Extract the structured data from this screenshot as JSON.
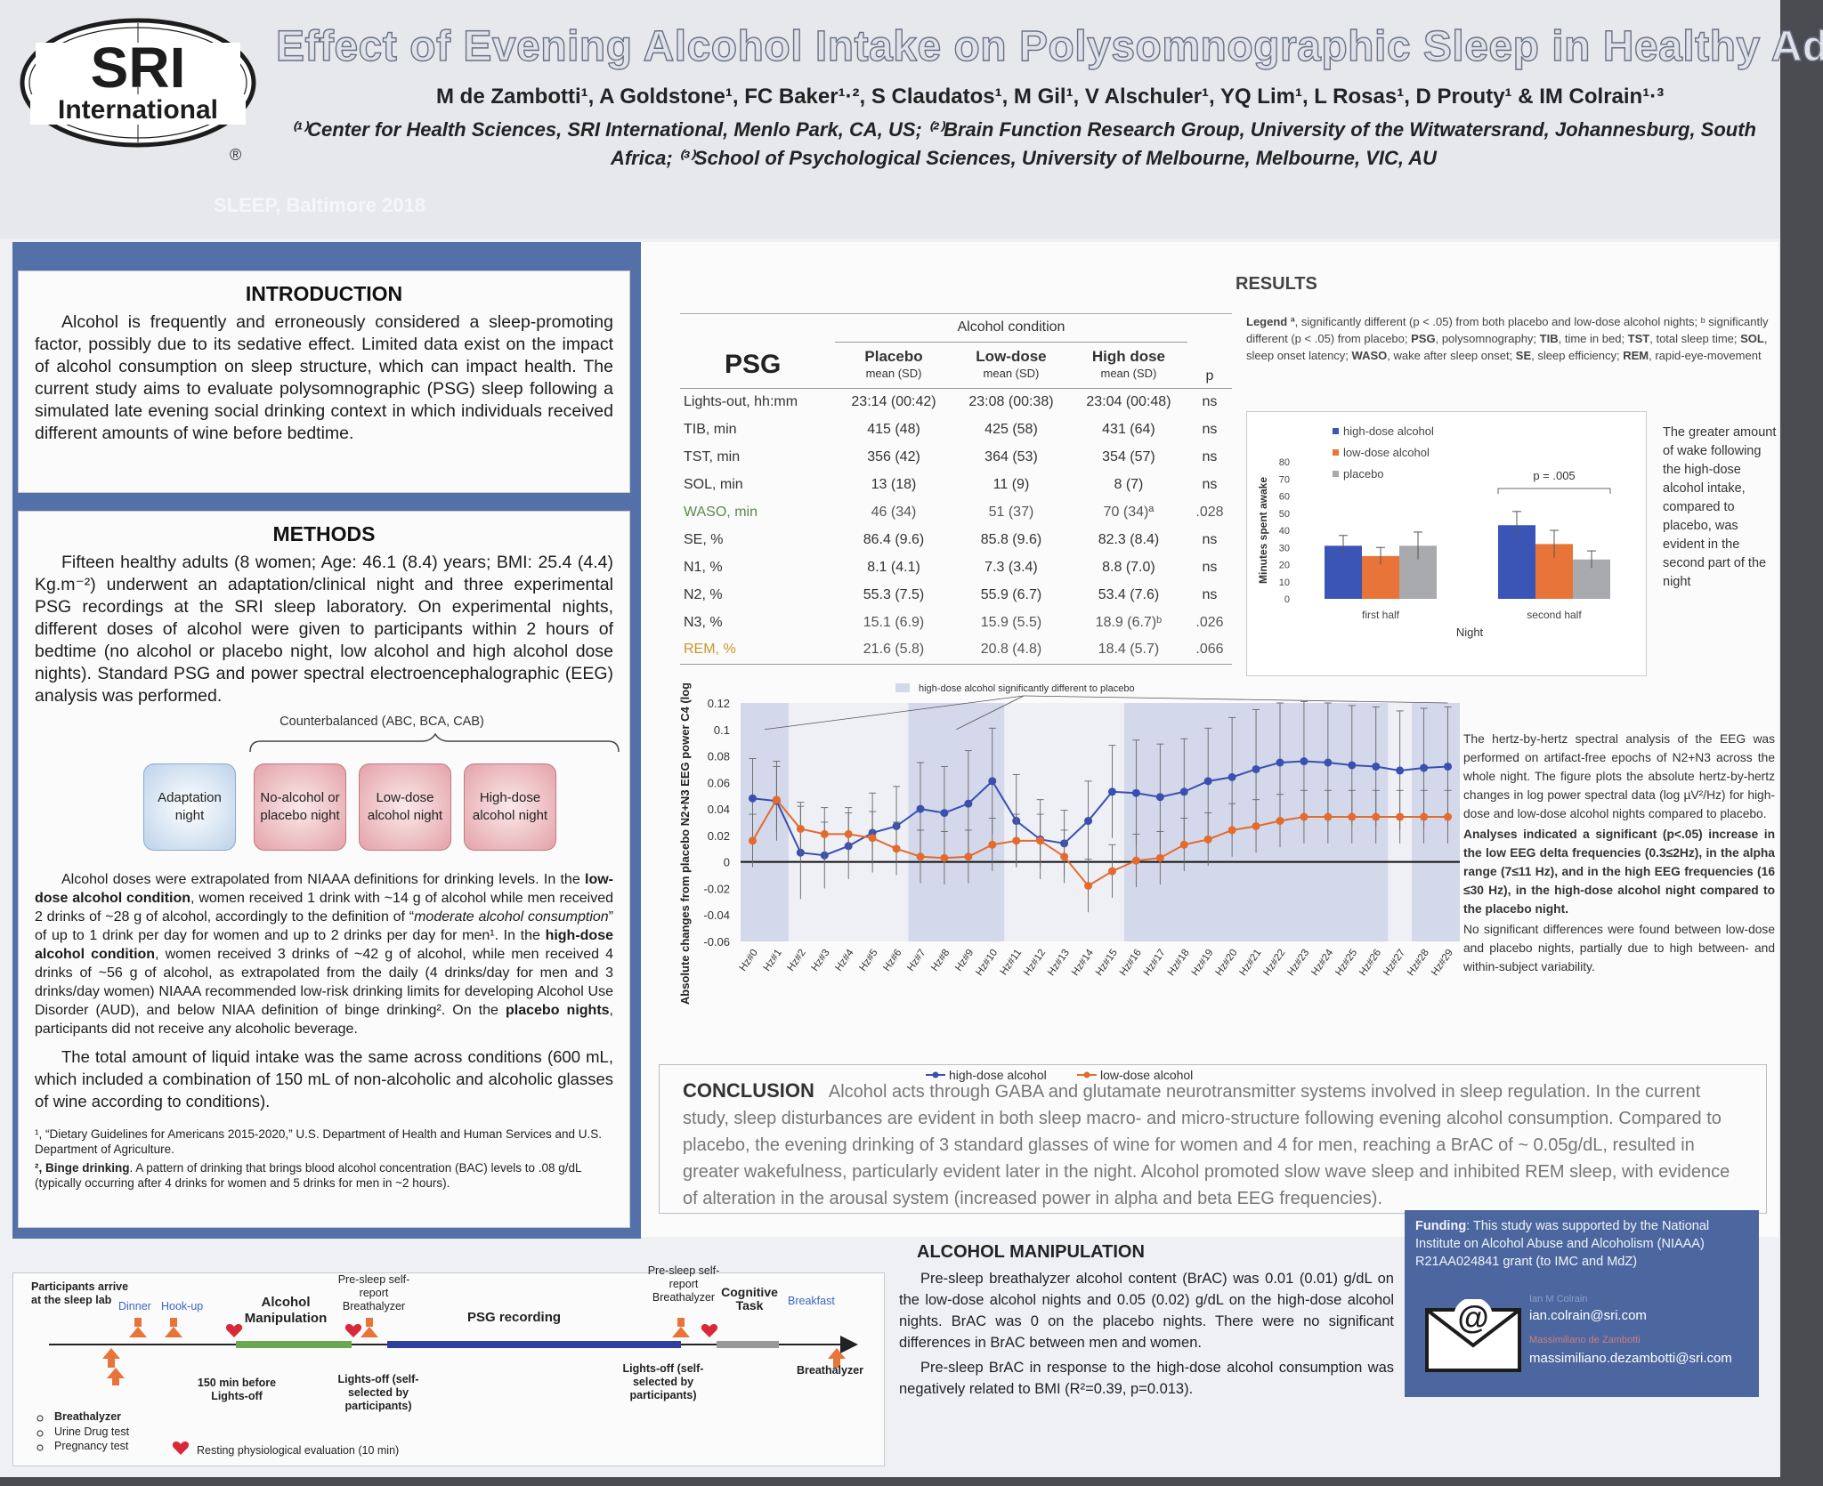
{
  "header": {
    "logo_top": "SRI",
    "logo_bottom": "International",
    "registered": "®",
    "title": "Effect of Evening Alcohol Intake on Polysomnographic Sleep in Healthy Adults",
    "authors": "M de Zambotti¹, A Goldstone¹, FC Baker¹·², S Claudatos¹, M Gil¹, V Alschuler¹, YQ Lim¹, L Rosas¹, D Prouty¹ & IM Colrain¹·³",
    "affiliations": "⁽¹⁾Center for Health Sciences, SRI International, Menlo Park, CA, US; ⁽²⁾Brain Function Research Group, University of the Witwatersrand, Johannesburg, South Africa; ⁽³⁾School of Psychological Sciences, University of Melbourne, Melbourne, VIC, AU",
    "conference": "SLEEP, Baltimore 2018"
  },
  "introduction": {
    "heading": "INTRODUCTION",
    "text": "Alcohol is frequently and erroneously considered a sleep-promoting factor, possibly due to its sedative effect. Limited data exist on the impact of alcohol consumption on sleep structure, which can impact health. The current study aims to evaluate polysomnographic (PSG) sleep following a simulated late evening social drinking context in which individuals received different amounts of wine before bedtime."
  },
  "methods": {
    "heading": "METHODS",
    "text": "Fifteen healthy adults (8 women; Age: 46.1 (8.4) years; BMI: 25.4 (4.4) Kg.m⁻²) underwent an adaptation/clinical night and three experimental PSG recordings at the SRI sleep laboratory. On experimental nights, different doses of alcohol were given to participants within 2 hours of bedtime (no alcohol or placebo night, low alcohol and high alcohol dose nights). Standard PSG and power spectral electroencephalographic (EEG) analysis was performed.",
    "counterbalanced": "Counterbalanced (ABC, BCA, CAB)",
    "nights": [
      "Adaptation night",
      "No-alcohol or placebo night",
      "Low-dose alcohol night",
      "High-dose alcohol night"
    ],
    "doses_p1": "Alcohol doses were extrapolated from NIAAA definitions for drinking levels. In the ",
    "doses_b1": "low-dose alcohol condition",
    "doses_p2": ", women received 1 drink with ~14 g of alcohol while men received 2 drinks of ~28 g of alcohol, accordingly to the definition of “",
    "doses_i1": "moderate alcohol consumption",
    "doses_p3": "” of up to 1 drink per day for women and up to 2 drinks per day for men¹. In the ",
    "doses_b2": "high-dose alcohol condition",
    "doses_p4": ", women received 3 drinks of ~42 g of alcohol, while men received 4 drinks of ~56 g of alcohol, as extrapolated from the daily (4 drinks/day for men and 3 drinks/day women) NIAAA recommended low-risk drinking limits for developing Alcohol Use Disorder (AUD), and below NIAA definition of binge drinking². On the ",
    "doses_b3": "placebo nights",
    "doses_p5": ", participants did not receive any alcoholic beverage.",
    "total": "The total amount of liquid intake was the same across conditions (600 mL, which included a combination of 150 mL of non-alcoholic and alcoholic glasses of wine according to conditions).",
    "fn1": "¹, “Dietary Guidelines for Americans 2015-2020,” U.S. Department of Health and Human Services and U.S. Department of Agriculture.",
    "fn2_b": "², Binge drinking",
    "fn2": ". A pattern of drinking that brings blood alcohol concentration (BAC) levels to .08 g/dL (typically occurring after 4 drinks for women and 5 drinks for men in ~2 hours)."
  },
  "results": {
    "heading": "RESULTS",
    "table": {
      "psg_label": "PSG",
      "group_header": "Alcohol condition",
      "columns": [
        {
          "name": "Placebo",
          "sub": "mean (SD)"
        },
        {
          "name": "Low-dose",
          "sub": "mean (SD)"
        },
        {
          "name": "High dose",
          "sub": "mean (SD)"
        }
      ],
      "p_header": "p",
      "rows": [
        {
          "label": "Lights-out, hh:mm",
          "placebo": "23:14 (00:42)",
          "low": "23:08 (00:38)",
          "high": "23:04 (00:48)",
          "p": "ns"
        },
        {
          "label": "TIB, min",
          "placebo": "415 (48)",
          "low": "425 (58)",
          "high": "431 (64)",
          "p": "ns"
        },
        {
          "label": "TST, min",
          "placebo": "356 (42)",
          "low": "364 (53)",
          "high": "354 (57)",
          "p": "ns"
        },
        {
          "label": "SOL, min",
          "placebo": "13 (18)",
          "low": "11 (9)",
          "high": "8 (7)",
          "p": "ns"
        },
        {
          "label": "WASO, min",
          "placebo": "46 (34)",
          "low": "51 (37)",
          "high": "70 (34)ª",
          "p": ".028"
        },
        {
          "label": "SE, %",
          "placebo": "86.4 (9.6)",
          "low": "85.8 (9.6)",
          "high": "82.3 (8.4)",
          "p": "ns"
        },
        {
          "label": "N1, %",
          "placebo": "8.1 (4.1)",
          "low": "7.3 (3.4)",
          "high": "8.8 (7.0)",
          "p": "ns"
        },
        {
          "label": "N2, %",
          "placebo": "55.3 (7.5)",
          "low": "55.9 (6.7)",
          "high": "53.4 (7.6)",
          "p": "ns"
        },
        {
          "label": "N3, %",
          "placebo": "15.1 (6.9)",
          "low": "15.9 (5.5)",
          "high": "18.9 (6.7)ᵇ",
          "p": ".026"
        },
        {
          "label": "REM, %",
          "placebo": "21.6 (5.8)",
          "low": "20.8 (4.8)",
          "high": "18.4 (5.7)",
          "p": ".066"
        }
      ],
      "colors": {
        "waso": "#5a8a4c",
        "n3": "#5a8a4c",
        "rem": "#c8952a"
      }
    },
    "legend_b1": "Legend ª",
    "legend_t1": ", significantly different (p < .05) from both placebo and low-dose alcohol nights; ᵇ significantly different (p < .05) from placebo; ",
    "legend_b2": "PSG",
    "legend_t2": ", polysomnography; ",
    "legend_b3": "TIB",
    "legend_t3": ", time in bed; ",
    "legend_b4": "TST",
    "legend_t4": ", total sleep time; ",
    "legend_b5": "SOL",
    "legend_t5": ", sleep onset latency; ",
    "legend_b6": "WASO",
    "legend_t6": ", wake after sleep onset; ",
    "legend_b7": "SE",
    "legend_t7": ", sleep efficiency; ",
    "legend_b8": "REM",
    "legend_t8": ", rapid-eye-movement",
    "wake_note": "The greater amount of wake following the high-dose alcohol intake, compared to placebo, was evident in the second part of the night",
    "spectral_p1": "The hertz-by-hertz spectral analysis of the EEG was performed on artifact-free epochs of N2+N3 across the whole night. The figure plots the absolute hertz-by-hertz changes in log power spectral data (log µV²/Hz) for high-dose and low-dose alcohol nights compared to placebo.",
    "spectral_p2": "Analyses indicated a significant (p<.05) increase in the low EEG delta frequencies (0.3≤2Hz), in the alpha range (7≤11 Hz), and in the high EEG frequencies (16 ≤30 Hz), in the high-dose alcohol night compared to the placebo night.",
    "spectral_p3": "No significant differences were found between low-dose and placebo nights, partially due to high between- and within-subject variability."
  },
  "chart_data": [
    {
      "type": "bar",
      "ylabel": "Minutes spent awake",
      "xlabel": "Night",
      "categories": [
        "first half",
        "second half"
      ],
      "ylim": [
        0,
        80
      ],
      "yticks": [
        0,
        10,
        20,
        30,
        40,
        50,
        60,
        70,
        80
      ],
      "series": [
        {
          "name": "high-dose alcohol",
          "values": [
            31,
            43
          ],
          "err": [
            6,
            8
          ],
          "color": "#3a55b6"
        },
        {
          "name": "low-dose alcohol",
          "values": [
            25,
            32
          ],
          "err": [
            5,
            8
          ],
          "color": "#e8743a"
        },
        {
          "name": "placebo",
          "values": [
            31,
            23
          ],
          "err": [
            8,
            5
          ],
          "color": "#a9aaad"
        }
      ],
      "annotation": "p = .005",
      "legend": "top-left"
    },
    {
      "type": "line",
      "ylabel": "Absolute changes from placebo N2+N3 EEG power C4 (log µV²/Hz)",
      "categories": [
        "Hz#0",
        "Hz#1",
        "Hz#2",
        "Hz#3",
        "Hz#4",
        "Hz#5",
        "Hz#6",
        "Hz#7",
        "Hz#8",
        "Hz#9",
        "Hz#10",
        "Hz#11",
        "Hz#12",
        "Hz#13",
        "Hz#14",
        "Hz#15",
        "Hz#16",
        "Hz#17",
        "Hz#18",
        "Hz#19",
        "Hz#20",
        "Hz#21",
        "Hz#22",
        "Hz#23",
        "Hz#24",
        "Hz#25",
        "Hz#26",
        "Hz#27",
        "Hz#28",
        "Hz#29"
      ],
      "ylim": [
        -0.06,
        0.12
      ],
      "yticks": [
        -0.06,
        -0.04,
        -0.02,
        0,
        0.02,
        0.04,
        0.06,
        0.08,
        0.1,
        0.12
      ],
      "series": [
        {
          "name": "high-dose alcohol",
          "color": "#3a4fb0",
          "values": [
            0.048,
            0.046,
            0.007,
            0.005,
            0.012,
            0.022,
            0.027,
            0.04,
            0.037,
            0.044,
            0.061,
            0.031,
            0.017,
            0.014,
            0.031,
            0.053,
            0.052,
            0.049,
            0.053,
            0.061,
            0.064,
            0.07,
            0.075,
            0.076,
            0.075,
            0.073,
            0.072,
            0.069,
            0.071,
            0.072
          ],
          "err": [
            0.03,
            0.03,
            0.035,
            0.025,
            0.025,
            0.03,
            0.03,
            0.035,
            0.035,
            0.04,
            0.04,
            0.035,
            0.03,
            0.025,
            0.03,
            0.035,
            0.04,
            0.04,
            0.04,
            0.04,
            0.045,
            0.045,
            0.045,
            0.045,
            0.045,
            0.045,
            0.045,
            0.045,
            0.045,
            0.045
          ]
        },
        {
          "name": "low-dose alcohol",
          "color": "#e46a2e",
          "values": [
            0.016,
            0.047,
            0.025,
            0.021,
            0.021,
            0.018,
            0.01,
            0.004,
            0.003,
            0.004,
            0.013,
            0.016,
            0.016,
            0.004,
            -0.018,
            -0.007,
            0.001,
            0.003,
            0.013,
            0.017,
            0.024,
            0.027,
            0.031,
            0.034,
            0.034,
            0.034,
            0.034,
            0.034,
            0.034,
            0.034
          ],
          "err": [
            0.02,
            0.025,
            0.02,
            0.02,
            0.02,
            0.02,
            0.02,
            0.02,
            0.02,
            0.02,
            0.02,
            0.02,
            0.02,
            0.02,
            0.02,
            0.02,
            0.02,
            0.02,
            0.02,
            0.02,
            0.02,
            0.02,
            0.02,
            0.02,
            0.02,
            0.02,
            0.02,
            0.02,
            0.02,
            0.02
          ]
        }
      ],
      "shaded_note": "high-dose alcohol significantly different to placebo",
      "shaded_ranges": [
        [
          0,
          1
        ],
        [
          7,
          10
        ],
        [
          16,
          26
        ],
        [
          28,
          29
        ]
      ],
      "legend": "bottom"
    }
  ],
  "conclusion": {
    "heading": "CONCLUSION",
    "text": "Alcohol acts through GABA and glutamate neurotransmitter systems involved in sleep regulation. In the current study, sleep disturbances are evident in both sleep macro- and micro-structure following evening alcohol consumption. Compared to placebo, the evening drinking of 3 standard glasses of wine for women and 4 for men, reaching a BrAC of ~ 0.05g/dL, resulted in greater wakefulness, particularly evident later in the night. Alcohol promoted slow wave sleep and inhibited REM sleep, with evidence of alteration in the arousal system (increased power in alpha and beta EEG frequencies)."
  },
  "alcohol_manipulation": {
    "heading": "ALCOHOL MANIPULATION",
    "p1": "Pre-sleep breathalyzer alcohol content (BrAC) was 0.01 (0.01) g/dL on the low-dose alcohol nights and 0.05 (0.02) g/dL on the high-dose alcohol nights. BrAC was 0 on the placebo nights. There were no significant differences in BrAC between men and women.",
    "p2": "Pre-sleep BrAC in response to the high-dose alcohol consumption was negatively related to BMI (R²=0.39, p=0.013)."
  },
  "funding": {
    "label": "Funding",
    "text": ": This study was supported by the National Institute on Alcohol Abuse and Alcoholism (NIAAA) R21AA024841 grant (to IMC and MdZ)",
    "name1": "Ian M Colrain",
    "email1": "ian.colrain@sri.com",
    "name2": "Massimiliano de Zambotti",
    "email2": "massimiliano.dezambotti@sri.com",
    "icon": "email-icon",
    "at": "@"
  },
  "timeline": {
    "arrive": "Participants arrive at the sleep lab",
    "dinner": "Dinner",
    "hookup": "Hook-up",
    "alcohol": "Alcohol Manipulation",
    "presleep1": "Pre-sleep self-report Breathalyzer",
    "psg": "PSG recording",
    "presleep2": "Pre-sleep self-report Breathalyzer",
    "cognitive": "Cognitive Task",
    "breakfast": "Breakfast",
    "before": "150 min before Lights-off",
    "lightsoff1": "Lights-off (self-selected by participants)",
    "lightsoff2": "Lights-off (self-selected by participants)",
    "breathalyzer_end": "Breathalyzer",
    "list": [
      "Breathalyzer",
      "Urine Drug test",
      "Pregnancy test"
    ],
    "resting": "Resting physiological evaluation (10 min)"
  }
}
